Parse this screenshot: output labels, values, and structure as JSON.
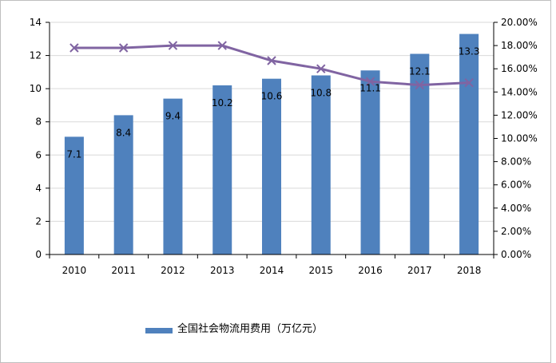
{
  "chart_data": {
    "type": "bar",
    "title": "",
    "categories": [
      "2010",
      "2011",
      "2012",
      "2013",
      "2014",
      "2015",
      "2016",
      "2017",
      "2018"
    ],
    "series": [
      {
        "name": "全国社会物流用费用（万亿元）",
        "type": "bar",
        "axis": "left",
        "color": "#4f81bd",
        "values": [
          7.1,
          8.4,
          9.4,
          10.2,
          10.6,
          10.8,
          11.1,
          12.1,
          13.3
        ],
        "labels": [
          "7.1",
          "8.4",
          "9.4",
          "10.2",
          "10.6",
          "10.8",
          "11.1",
          "12.1",
          "13.3"
        ]
      },
      {
        "name": "",
        "type": "line",
        "axis": "right",
        "color": "#8064a2",
        "marker": "x",
        "values": [
          0.178,
          0.178,
          0.18,
          0.18,
          0.167,
          0.16,
          0.149,
          0.146,
          0.148
        ]
      }
    ],
    "y_left": {
      "ylim": [
        0,
        14
      ],
      "ticks": [
        "0",
        "2",
        "4",
        "6",
        "8",
        "10",
        "12",
        "14"
      ]
    },
    "y_right": {
      "ylim": [
        0,
        0.2
      ],
      "ticks": [
        "0.00%",
        "2.00%",
        "4.00%",
        "6.00%",
        "8.00%",
        "10.00%",
        "12.00%",
        "14.00%",
        "16.00%",
        "18.00%",
        "20.00%"
      ]
    },
    "xlabel": "",
    "ylabel": "",
    "legend_position": "bottom"
  },
  "legend": {
    "label": "全国社会物流用费用（万亿元）"
  }
}
